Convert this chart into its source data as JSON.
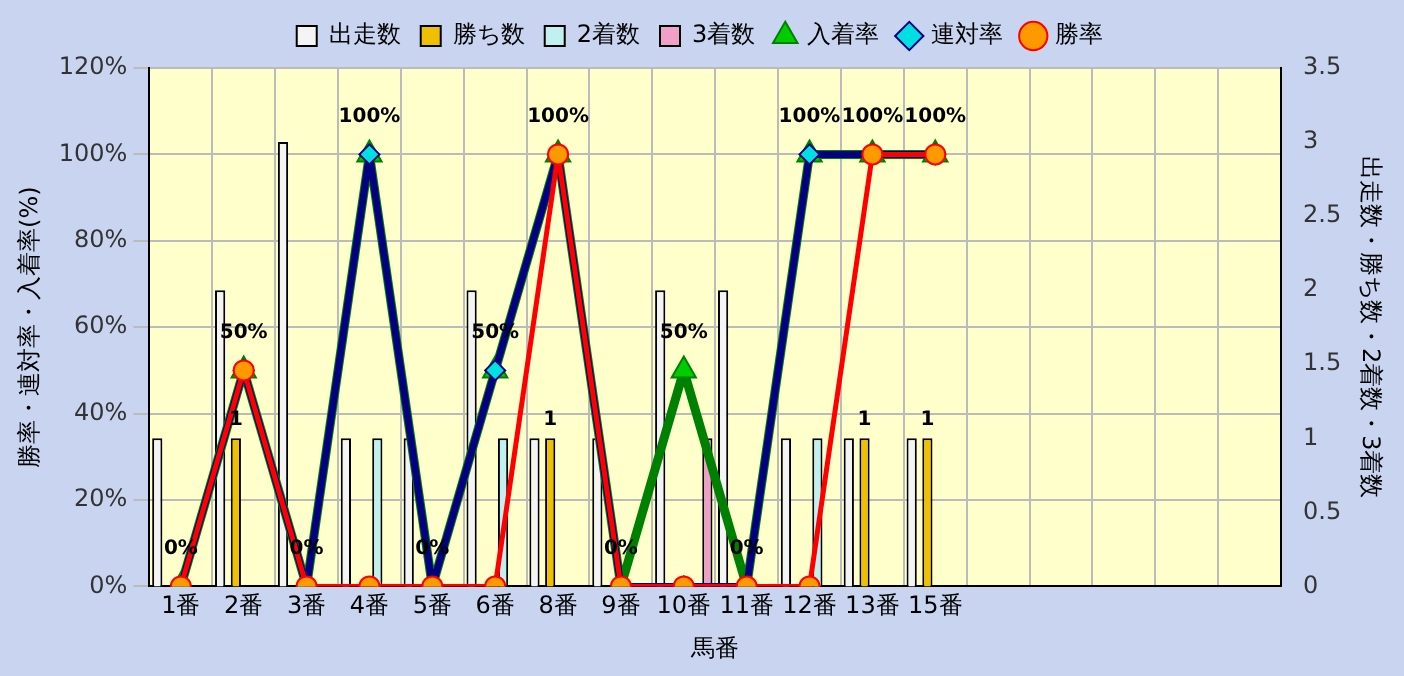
{
  "chart_data": {
    "type": "bar",
    "xlabel": "馬番",
    "ylabel": "勝率・連対率・入着率(%)",
    "y2label": "出走数・勝ち数・2着数・3着数",
    "categories": [
      "1番",
      "2番",
      "3番",
      "4番",
      "5番",
      "6番",
      "8番",
      "9番",
      "10番",
      "11番",
      "12番",
      "13番",
      "15番",
      null,
      null,
      null,
      null,
      null
    ],
    "series": [
      {
        "name": "出走数",
        "axis": "y2",
        "color": "#f4f4f4",
        "values": [
          1,
          2,
          3,
          1,
          1,
          2,
          1,
          1,
          2,
          2,
          1,
          1,
          1,
          null,
          null,
          null,
          null,
          null
        ]
      },
      {
        "name": "勝ち数",
        "axis": "y2",
        "color": "#f0c000",
        "values": [
          0,
          1,
          0,
          0,
          0,
          0,
          1,
          0,
          0,
          0,
          0,
          1,
          1,
          null,
          null,
          null,
          null,
          null
        ],
        "value_labels": [
          null,
          "1",
          null,
          null,
          null,
          null,
          "1",
          null,
          null,
          null,
          null,
          "1",
          "1",
          null,
          null,
          null,
          null,
          null
        ]
      },
      {
        "name": "2着数",
        "axis": "y2",
        "color": "#c0f0f0",
        "values": [
          0,
          0,
          0,
          1,
          0,
          1,
          0,
          0,
          0,
          0,
          1,
          0,
          0,
          null,
          null,
          null,
          null,
          null
        ]
      },
      {
        "name": "3着数",
        "axis": "y2",
        "color": "#f0a0c8",
        "values": [
          0,
          0,
          0,
          0,
          0,
          0,
          0,
          0,
          1,
          0,
          0,
          0,
          0,
          null,
          null,
          null,
          null,
          null
        ]
      },
      {
        "name": "入着率",
        "type": "line",
        "color": "#008000",
        "marker": "triangle",
        "values": [
          0,
          50,
          0,
          100,
          0,
          50,
          100,
          0,
          50,
          0,
          100,
          100,
          100,
          null,
          null,
          null,
          null,
          null
        ],
        "value_labels": [
          "0%",
          "50%",
          "0%",
          "100%",
          "0%",
          "50%",
          "100%",
          "0%",
          "50%",
          "0%",
          "100%",
          "100%",
          "100%",
          null,
          null,
          null,
          null,
          null
        ]
      },
      {
        "name": "連対率",
        "type": "line",
        "color": "#000080",
        "marker": "diamond",
        "values": [
          0,
          50,
          0,
          100,
          0,
          50,
          100,
          0,
          0,
          0,
          100,
          100,
          100,
          null,
          null,
          null,
          null,
          null
        ]
      },
      {
        "name": "勝率",
        "type": "line",
        "color": "#ff0000",
        "marker": "circle",
        "values": [
          0,
          50,
          0,
          0,
          0,
          0,
          100,
          0,
          0,
          0,
          0,
          100,
          100,
          null,
          null,
          null,
          null,
          null
        ]
      }
    ],
    "ylim": [
      0,
      120
    ],
    "yticks": [
      {
        "value": 0,
        "label": "0%"
      },
      {
        "value": 20,
        "label": "20%"
      },
      {
        "value": 40,
        "label": "40%"
      },
      {
        "value": 60,
        "label": "60%"
      },
      {
        "value": 80,
        "label": "80%"
      },
      {
        "value": 100,
        "label": "100%"
      },
      {
        "value": 120,
        "label": "120%"
      }
    ],
    "y2lim": [
      0,
      3.5
    ],
    "y2ticks": [
      0,
      0.5,
      1,
      1.5,
      2,
      2.5,
      3,
      3.5
    ],
    "grid": true,
    "legend": "top"
  }
}
